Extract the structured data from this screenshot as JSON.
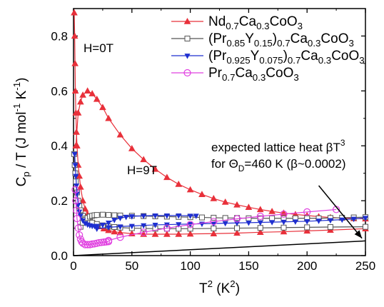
{
  "chart_data": {
    "type": "scatter",
    "title": "",
    "xlabel": {
      "base": "T",
      "sup": "2",
      "unit_open": " (K",
      "unit_sup": "2",
      "unit_close": ")"
    },
    "ylabel": {
      "c": "C",
      "c_sub": "p",
      "mid": " / T (J mol",
      "sup1": "-1",
      "k": " K",
      "sup2": "-1",
      "close": ")"
    },
    "xlim": [
      0,
      250
    ],
    "ylim": [
      0,
      0.9
    ],
    "xticks": [
      0,
      50,
      100,
      150,
      200,
      250
    ],
    "yticks": [
      0.0,
      0.2,
      0.4,
      0.6,
      0.8
    ],
    "xtick_labels": [
      "0",
      "50",
      "100",
      "150",
      "200",
      "250"
    ],
    "ytick_labels": [
      "0.0",
      "0.2",
      "0.4",
      "0.6",
      "0.8"
    ],
    "grid": false,
    "legend_position": "top-right",
    "legend": [
      {
        "parts": [
          [
            "Nd",
            ""
          ],
          [
            "0.7",
            "sub"
          ],
          [
            "Ca",
            ""
          ],
          [
            "0.3",
            "sub"
          ],
          [
            "CoO",
            ""
          ],
          [
            "3",
            "sub"
          ]
        ],
        "color": "#e8303a",
        "marker": "triangle-up-filled"
      },
      {
        "parts": [
          [
            "(Pr",
            ""
          ],
          [
            "0.85",
            "sub"
          ],
          [
            "Y",
            ""
          ],
          [
            "0.15",
            "sub"
          ],
          [
            ")",
            ""
          ],
          [
            "0.7",
            "sub"
          ],
          [
            "Ca",
            ""
          ],
          [
            "0.3",
            "sub"
          ],
          [
            "CoO",
            ""
          ],
          [
            "3",
            "sub"
          ]
        ],
        "color": "#555555",
        "marker": "square-open"
      },
      {
        "parts": [
          [
            "(Pr",
            ""
          ],
          [
            "0.925",
            "sub"
          ],
          [
            "Y",
            ""
          ],
          [
            "0.075",
            "sub"
          ],
          [
            ")",
            ""
          ],
          [
            "0.7",
            "sub"
          ],
          [
            "Ca",
            ""
          ],
          [
            "0.3",
            "sub"
          ],
          [
            "CoO",
            ""
          ],
          [
            "3",
            "sub"
          ]
        ],
        "color": "#1f2fd0",
        "marker": "triangle-down-filled"
      },
      {
        "parts": [
          [
            "Pr",
            ""
          ],
          [
            "0.7",
            "sub"
          ],
          [
            "Ca",
            ""
          ],
          [
            "0.3",
            "sub"
          ],
          [
            "CoO",
            ""
          ],
          [
            "3",
            "sub"
          ]
        ],
        "color": "#e040e0",
        "marker": "circle-open"
      }
    ],
    "series": [
      {
        "color": "#e8303a",
        "marker": "triangle-up-filled",
        "x": [
          2,
          4,
          6,
          8,
          12,
          16,
          20,
          25,
          30,
          40,
          50,
          60,
          70,
          80,
          90,
          100,
          110,
          120,
          130,
          140,
          150,
          160,
          170,
          180,
          190,
          200,
          210,
          220,
          230,
          240,
          250
        ],
        "y": [
          0.4,
          0.52,
          0.56,
          0.585,
          0.6,
          0.59,
          0.57,
          0.54,
          0.5,
          0.44,
          0.39,
          0.35,
          0.315,
          0.285,
          0.26,
          0.24,
          0.223,
          0.208,
          0.195,
          0.185,
          0.176,
          0.168,
          0.161,
          0.155,
          0.15,
          0.146,
          0.142,
          0.139,
          0.137,
          0.135,
          0.134
        ]
      },
      {
        "color": "#e8303a",
        "marker": "triangle-up-filled",
        "x": [
          0.6,
          1,
          1.3,
          1.6,
          2,
          2.5,
          3,
          4,
          5,
          6,
          8,
          10,
          12,
          15,
          18,
          22,
          26,
          30,
          35,
          40,
          50,
          60,
          70,
          80,
          90,
          100,
          120,
          140,
          160,
          180,
          200,
          220,
          250
        ],
        "y": [
          0.885,
          0.8,
          0.7,
          0.6,
          0.52,
          0.45,
          0.4,
          0.33,
          0.29,
          0.25,
          0.2,
          0.17,
          0.15,
          0.13,
          0.118,
          0.106,
          0.098,
          0.092,
          0.087,
          0.084,
          0.08,
          0.078,
          0.078,
          0.078,
          0.078,
          0.079,
          0.08,
          0.082,
          0.085,
          0.087,
          0.09,
          0.093,
          0.098
        ]
      },
      {
        "color": "#555555",
        "marker": "square-open",
        "x": [
          0.5,
          1,
          1.5,
          2,
          3,
          4,
          5,
          6,
          8,
          10,
          12,
          14,
          16,
          20,
          25,
          30,
          35,
          40,
          50,
          60,
          70,
          80,
          90,
          100,
          120,
          140,
          160,
          180,
          200,
          220,
          250
        ],
        "y": [
          0.37,
          0.33,
          0.3,
          0.27,
          0.23,
          0.2,
          0.18,
          0.165,
          0.145,
          0.135,
          0.128,
          0.123,
          0.12,
          0.115,
          0.11,
          0.106,
          0.104,
          0.102,
          0.1,
          0.099,
          0.098,
          0.098,
          0.098,
          0.098,
          0.099,
          0.1,
          0.101,
          0.102,
          0.103,
          0.104,
          0.105
        ]
      },
      {
        "color": "#555555",
        "marker": "square-open",
        "x": [
          6,
          8,
          10,
          12,
          14,
          16,
          18,
          20,
          25,
          30,
          35,
          40,
          50,
          60,
          70,
          80,
          90,
          100,
          110,
          120,
          130,
          140,
          150,
          160,
          170,
          180,
          190,
          200,
          210,
          220,
          230,
          240,
          250
        ],
        "y": [
          0.105,
          0.12,
          0.13,
          0.137,
          0.142,
          0.145,
          0.147,
          0.148,
          0.149,
          0.148,
          0.147,
          0.146,
          0.145,
          0.144,
          0.143,
          0.142,
          0.141,
          0.14,
          0.139,
          0.138,
          0.137,
          0.137,
          0.136,
          0.136,
          0.136,
          0.136,
          0.136,
          0.136,
          0.136,
          0.137,
          0.138,
          0.139,
          0.14
        ]
      },
      {
        "color": "#1f2fd0",
        "marker": "triangle-down-filled",
        "x": [
          1,
          1.5,
          2,
          2.5,
          3,
          4,
          5,
          6,
          8,
          10,
          12,
          14,
          16,
          18,
          20,
          25,
          30,
          35,
          40,
          45,
          50,
          60,
          70,
          80,
          90,
          100,
          105
        ],
        "y": [
          0.37,
          0.33,
          0.29,
          0.255,
          0.225,
          0.185,
          0.16,
          0.145,
          0.128,
          0.118,
          0.113,
          0.11,
          0.108,
          0.108,
          0.108,
          0.112,
          0.12,
          0.13,
          0.137,
          0.141,
          0.143,
          0.145,
          0.146,
          0.146,
          0.146,
          0.145,
          0.145
        ]
      },
      {
        "color": "#1f2fd0",
        "marker": "triangle-down-filled",
        "x": [
          20,
          30,
          40,
          50,
          60,
          70,
          80,
          90,
          100,
          110,
          120,
          130,
          140,
          150,
          160,
          170,
          180,
          190,
          200,
          210,
          220,
          230,
          240,
          250
        ],
        "y": [
          0.098,
          0.103,
          0.106,
          0.108,
          0.11,
          0.112,
          0.113,
          0.114,
          0.115,
          0.116,
          0.117,
          0.118,
          0.119,
          0.12,
          0.121,
          0.122,
          0.123,
          0.124,
          0.125,
          0.127,
          0.129,
          0.131,
          0.134,
          0.137
        ]
      },
      {
        "color": "#e040e0",
        "marker": "circle-open",
        "x": [
          1.5,
          2,
          2.5,
          3,
          4,
          5,
          6,
          7,
          8,
          10,
          12,
          14,
          16,
          18,
          20,
          22,
          24,
          26,
          28,
          30
        ],
        "y": [
          0.24,
          0.2,
          0.165,
          0.135,
          0.1,
          0.075,
          0.06,
          0.05,
          0.045,
          0.04,
          0.04,
          0.04,
          0.042,
          0.043,
          0.045,
          0.047,
          0.048,
          0.049,
          0.05,
          0.051
        ]
      },
      {
        "color": "#e040e0",
        "marker": "circle-open",
        "x": [
          30,
          40,
          60,
          80,
          100,
          120,
          140,
          160,
          180,
          200,
          225
        ],
        "y": [
          0.055,
          0.067,
          0.085,
          0.1,
          0.113,
          0.124,
          0.134,
          0.143,
          0.151,
          0.159,
          0.168
        ]
      }
    ],
    "lattice_line": {
      "x": [
        0,
        250
      ],
      "y": [
        0.0,
        0.0535
      ],
      "color": "#000000"
    },
    "annotations": [
      {
        "id": "h0",
        "text": "H=0T"
      },
      {
        "id": "h9",
        "text": "H=9T"
      },
      {
        "id": "lattice1",
        "parts": [
          [
            "expected lattice heat ",
            ""
          ],
          [
            "β",
            ""
          ],
          [
            "T",
            ""
          ],
          [
            "3",
            "sup"
          ]
        ]
      },
      {
        "id": "lattice2",
        "parts": [
          [
            "for ",
            ""
          ],
          [
            "Θ",
            ""
          ],
          [
            "D",
            "sub"
          ],
          [
            "=460 K (",
            ""
          ],
          [
            "β",
            ""
          ],
          [
            "~0.0002)",
            ""
          ]
        ]
      }
    ],
    "arrow": {
      "from": [
        210,
        0.255
      ],
      "to": [
        247,
        0.063
      ]
    }
  }
}
